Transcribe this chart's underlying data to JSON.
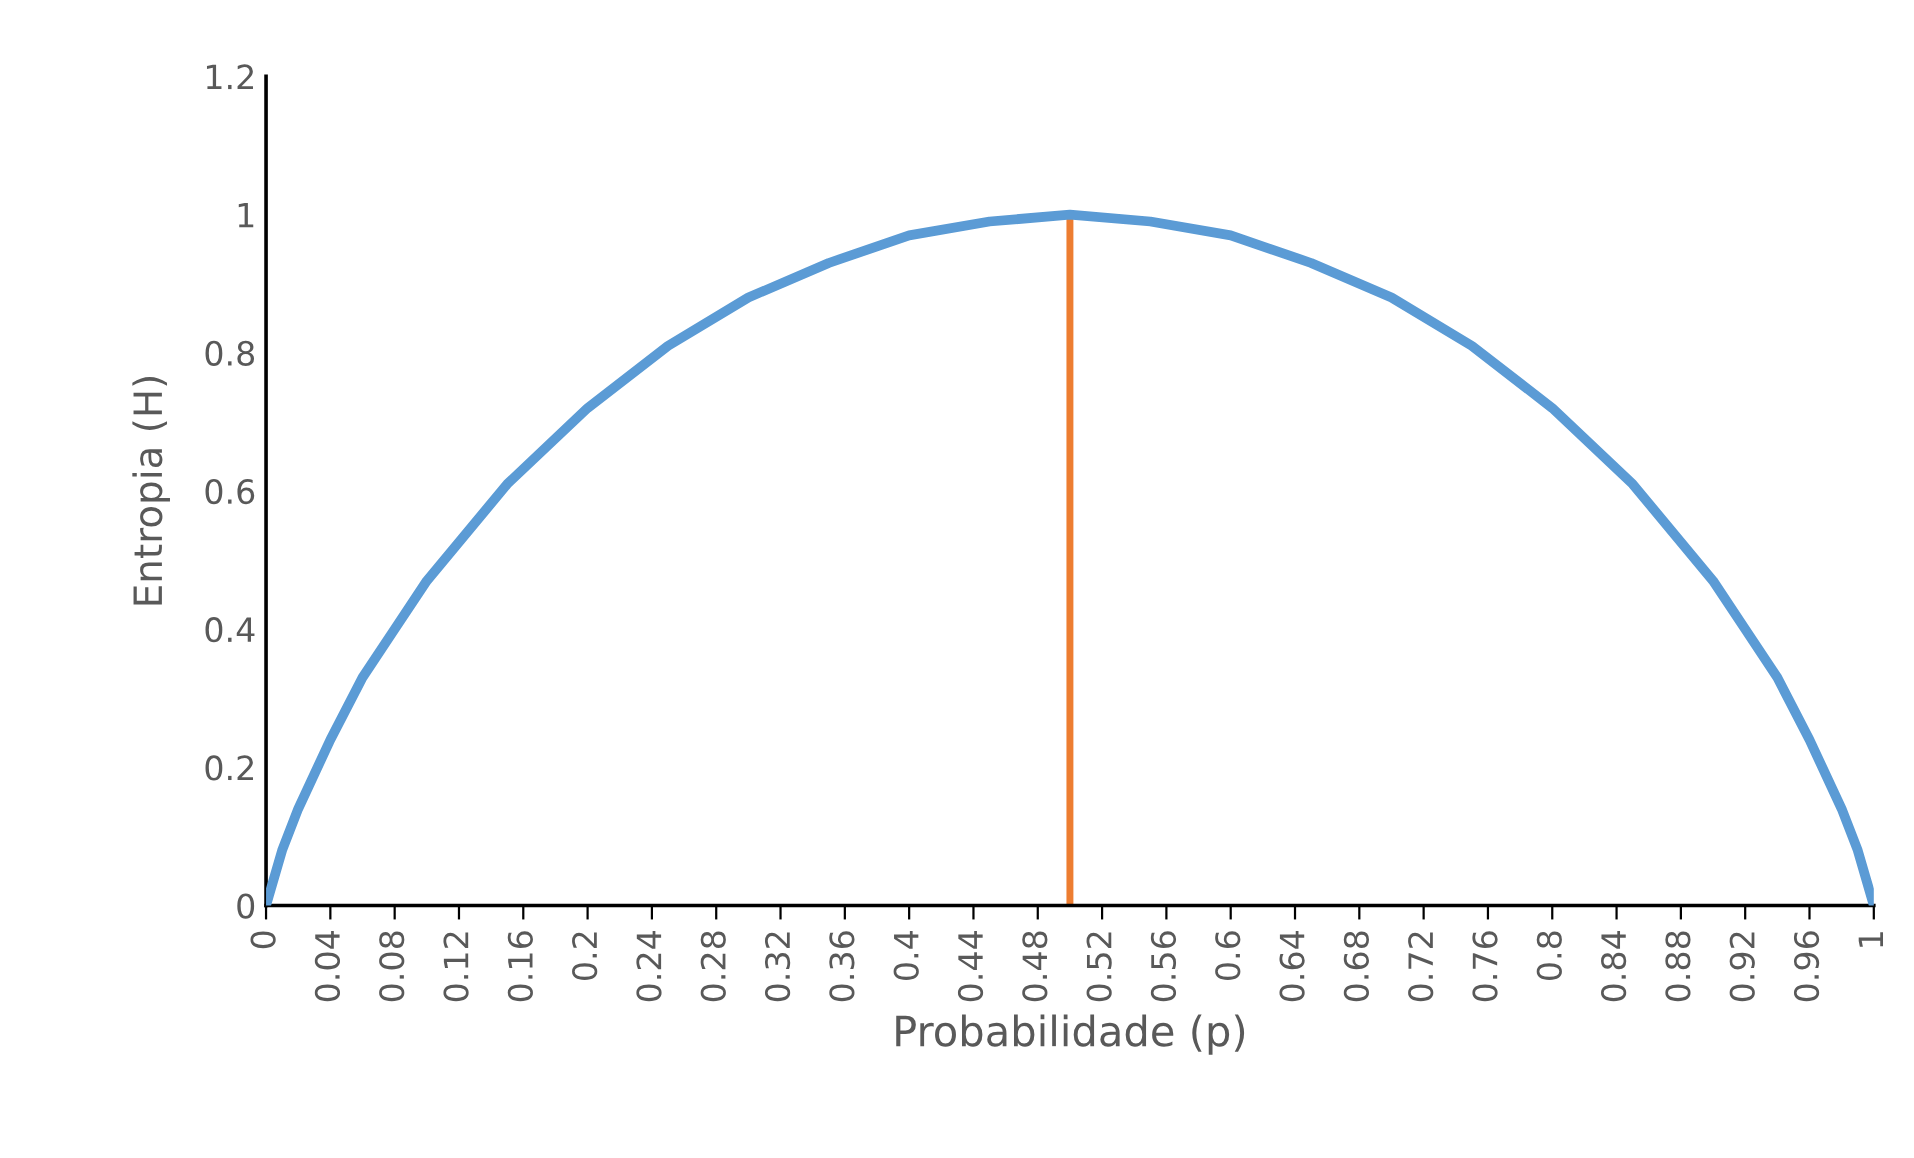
{
  "chart_data": {
    "type": "line",
    "xlabel": "Probabilidade (p)",
    "ylabel": "Entropia (H)",
    "xlim": [
      0,
      1
    ],
    "ylim": [
      0,
      1.2
    ],
    "xticks": [
      0,
      0.04,
      0.08,
      0.12,
      0.16,
      0.2,
      0.24,
      0.28,
      0.32,
      0.36,
      0.4,
      0.44,
      0.48,
      0.52,
      0.56,
      0.6,
      0.64,
      0.68,
      0.72,
      0.76,
      0.8,
      0.84,
      0.88,
      0.92,
      0.96,
      1
    ],
    "yticks": [
      0,
      0.2,
      0.4,
      0.6,
      0.8,
      1,
      1.2
    ],
    "grid": false,
    "series": [
      {
        "color": "#5b9bd5",
        "x": [
          0,
          0.01,
          0.02,
          0.04,
          0.06,
          0.08,
          0.1,
          0.15,
          0.2,
          0.25,
          0.3,
          0.35,
          0.4,
          0.45,
          0.5,
          0.55,
          0.6,
          0.65,
          0.7,
          0.75,
          0.8,
          0.85,
          0.9,
          0.92,
          0.94,
          0.96,
          0.98,
          0.99,
          1
        ],
        "values": [
          0,
          0.08,
          0.14,
          0.24,
          0.33,
          0.4,
          0.47,
          0.61,
          0.72,
          0.81,
          0.88,
          0.93,
          0.97,
          0.99,
          1,
          0.99,
          0.97,
          0.93,
          0.88,
          0.81,
          0.72,
          0.61,
          0.47,
          0.4,
          0.33,
          0.24,
          0.14,
          0.08,
          0
        ]
      },
      {
        "color": "#ed7d31",
        "x": [
          0.5,
          0.5
        ],
        "values": [
          0,
          1
        ]
      }
    ]
  }
}
